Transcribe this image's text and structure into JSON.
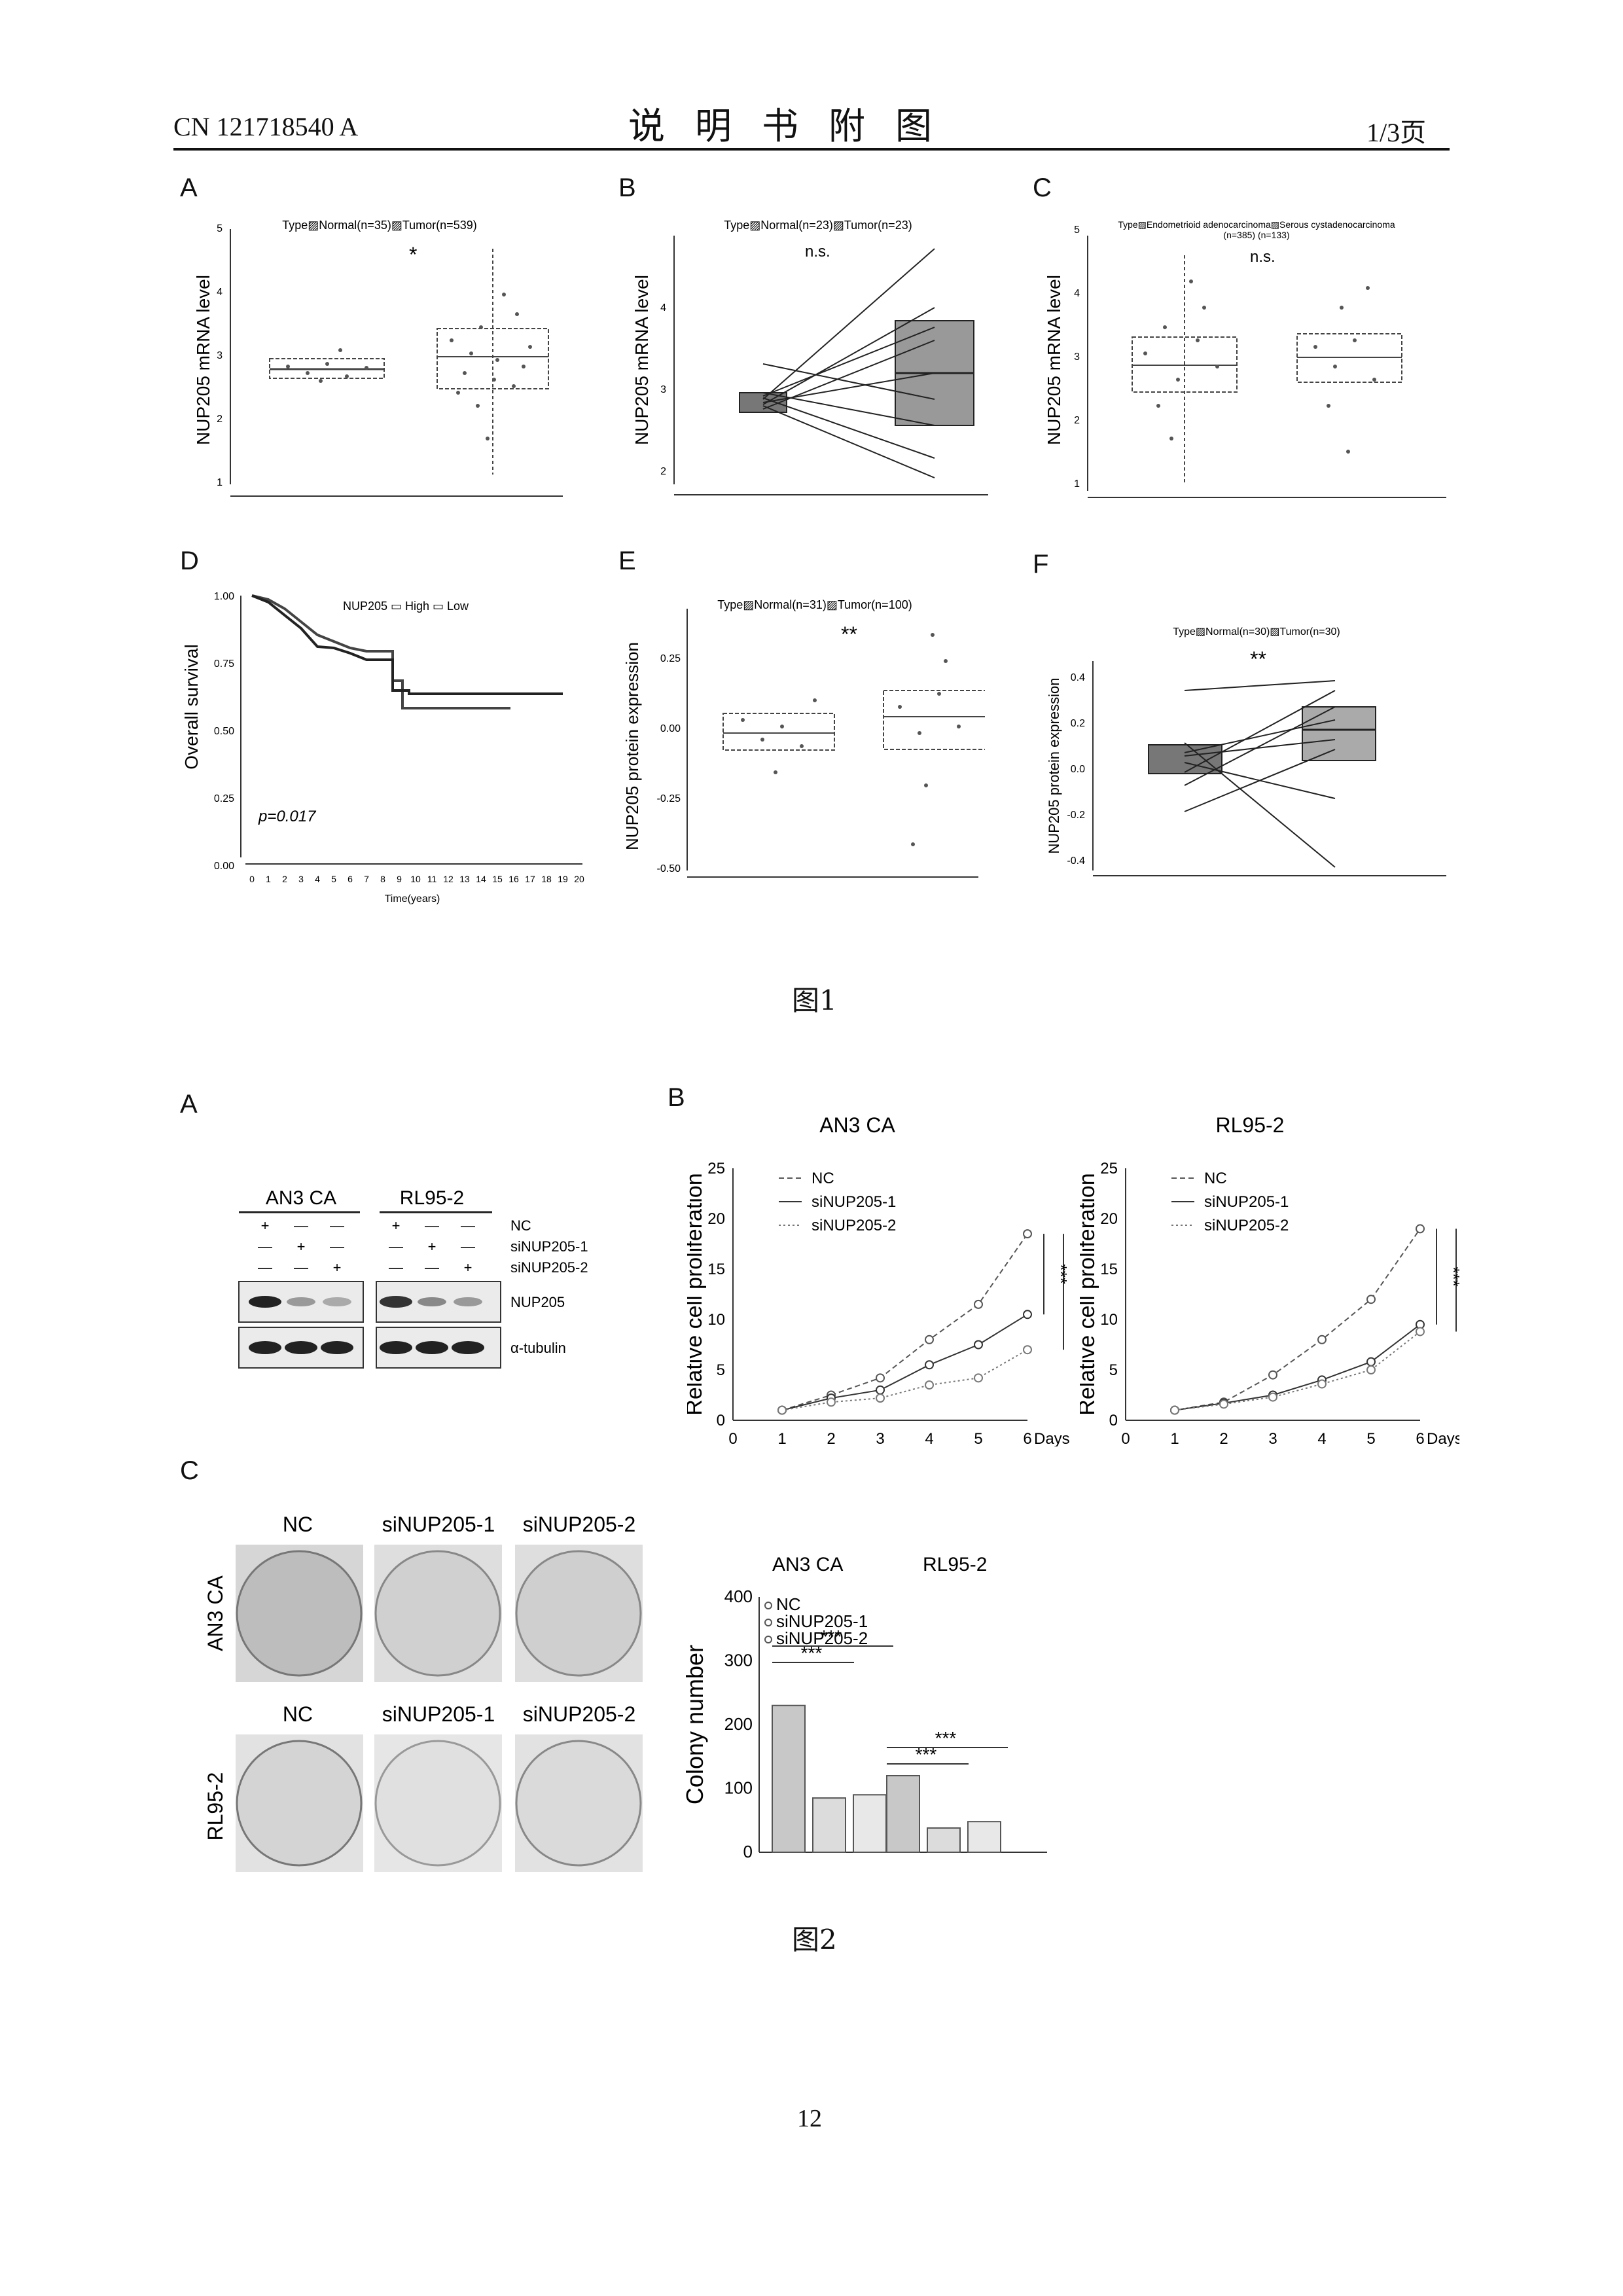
{
  "header": {
    "doc_id": "CN 121718540 A",
    "title": "说明书附图",
    "page": "1/3页"
  },
  "figure1": {
    "caption": "图1",
    "A": {
      "label": "A",
      "legend": "Type▨Normal(n=35)▨Tumor(n=539)",
      "ylabel": "NUP205 mRNA level",
      "yticks": [
        "1",
        "2",
        "3",
        "4",
        "5"
      ],
      "sig": "*"
    },
    "B": {
      "label": "B",
      "legend": "Type▨Normal(n=23)▨Tumor(n=23)",
      "ylabel": "NUP205 mRNA level",
      "yticks": [
        "2",
        "3",
        "4"
      ],
      "sig": "n.s."
    },
    "C": {
      "label": "C",
      "legend": "Type▨Endometrioid adenocarcinoma▨Serous cystadenocarcinoma",
      "legend2": "(n=385)                          (n=133)",
      "ylabel": "NUP205 mRNA level",
      "yticks": [
        "1",
        "2",
        "3",
        "4",
        "5"
      ],
      "sig": "n.s."
    },
    "D": {
      "label": "D",
      "legend": "NUP205 ▭ High ▭ Low",
      "ylabel": "Overall survival",
      "xlabel": "Time(years)",
      "yticks": [
        "0.00",
        "0.25",
        "0.50",
        "0.75",
        "1.00"
      ],
      "xticks": [
        "0",
        "1",
        "2",
        "3",
        "4",
        "5",
        "6",
        "7",
        "8",
        "9",
        "10",
        "11",
        "12",
        "13",
        "14",
        "15",
        "16",
        "17",
        "18",
        "19",
        "20"
      ],
      "pval": "p=0.017"
    },
    "E": {
      "label": "E",
      "legend": "Type▨Normal(n=31)▨Tumor(n=100)",
      "ylabel": "NUP205 protein expression",
      "yticks": [
        "-0.50",
        "-0.25",
        "0.00",
        "0.25"
      ],
      "sig": "**"
    },
    "F": {
      "label": "F",
      "legend": "Type▨Normal(n=30)▨Tumor(n=30)",
      "ylabel": "NUP205 protein expression",
      "yticks": [
        "-0.4",
        "-0.2",
        "0.0",
        "0.2",
        "0.4"
      ],
      "sig": "**"
    }
  },
  "figure2": {
    "caption": "图2",
    "A": {
      "label": "A",
      "cell_lines": [
        "AN3 CA",
        "RL95-2"
      ],
      "row_labels": [
        "NC",
        "siNUP205-1",
        "siNUP205-2"
      ],
      "sign_rows": [
        [
          "+",
          "—",
          "—",
          "+",
          "—",
          "—"
        ],
        [
          "—",
          "+",
          "—",
          "—",
          "+",
          "—"
        ],
        [
          "—",
          "—",
          "+",
          "—",
          "—",
          "+"
        ]
      ],
      "blots": [
        "NUP205",
        "α-tubulin"
      ]
    },
    "B": {
      "label": "B"
    },
    "C": {
      "label": "C",
      "col_labels": [
        "NC",
        "siNUP205-1",
        "siNUP205-2"
      ],
      "row_labels": [
        "AN3 CA",
        "RL95-2"
      ]
    }
  },
  "chart_data": [
    {
      "type": "line",
      "title": "AN3 CA",
      "xlabel": "Days",
      "ylabel": "Relative cell proliferation",
      "x": [
        1,
        2,
        3,
        4,
        5,
        6
      ],
      "xticks": [
        "0",
        "1",
        "2",
        "3",
        "4",
        "5",
        "6"
      ],
      "yticks": [
        "0",
        "5",
        "10",
        "15",
        "20",
        "25"
      ],
      "ylim": [
        0,
        25
      ],
      "series": [
        {
          "name": "NC",
          "values": [
            1.0,
            2.5,
            4.2,
            8.0,
            11.5,
            18.5
          ]
        },
        {
          "name": "siNUP205-1",
          "values": [
            1.0,
            2.2,
            3.0,
            5.5,
            7.5,
            10.5
          ]
        },
        {
          "name": "siNUP205-2",
          "values": [
            1.0,
            1.8,
            2.2,
            3.5,
            4.2,
            7.0
          ]
        }
      ],
      "annotations": [
        "***",
        "***"
      ]
    },
    {
      "type": "line",
      "title": "RL95-2",
      "xlabel": "Days",
      "ylabel": "Relative cell proliferation",
      "x": [
        1,
        2,
        3,
        4,
        5,
        6
      ],
      "xticks": [
        "0",
        "1",
        "2",
        "3",
        "4",
        "5",
        "6"
      ],
      "yticks": [
        "0",
        "5",
        "10",
        "15",
        "20",
        "25"
      ],
      "ylim": [
        0,
        25
      ],
      "series": [
        {
          "name": "NC",
          "values": [
            1.0,
            1.8,
            4.5,
            8.0,
            12.0,
            19.0
          ]
        },
        {
          "name": "siNUP205-1",
          "values": [
            1.0,
            1.7,
            2.5,
            4.0,
            5.8,
            9.5
          ]
        },
        {
          "name": "siNUP205-2",
          "values": [
            1.0,
            1.6,
            2.3,
            3.6,
            5.0,
            8.8
          ]
        }
      ],
      "annotations": [
        "***",
        "***"
      ]
    },
    {
      "type": "bar",
      "title": "AN3 CA        RL95-2",
      "ylabel": "Colony number",
      "categories": [
        "AN3 CA",
        "RL95-2"
      ],
      "yticks": [
        "0",
        "100",
        "200",
        "300",
        "400"
      ],
      "ylim": [
        0,
        400
      ],
      "series": [
        {
          "name": "NC",
          "values": [
            230,
            120
          ]
        },
        {
          "name": "siNUP205-1",
          "values": [
            85,
            38
          ]
        },
        {
          "name": "siNUP205-2",
          "values": [
            90,
            48
          ]
        }
      ],
      "annotations": [
        "***",
        "***",
        "***",
        "***"
      ]
    }
  ],
  "footer": {
    "page_number": "12"
  }
}
